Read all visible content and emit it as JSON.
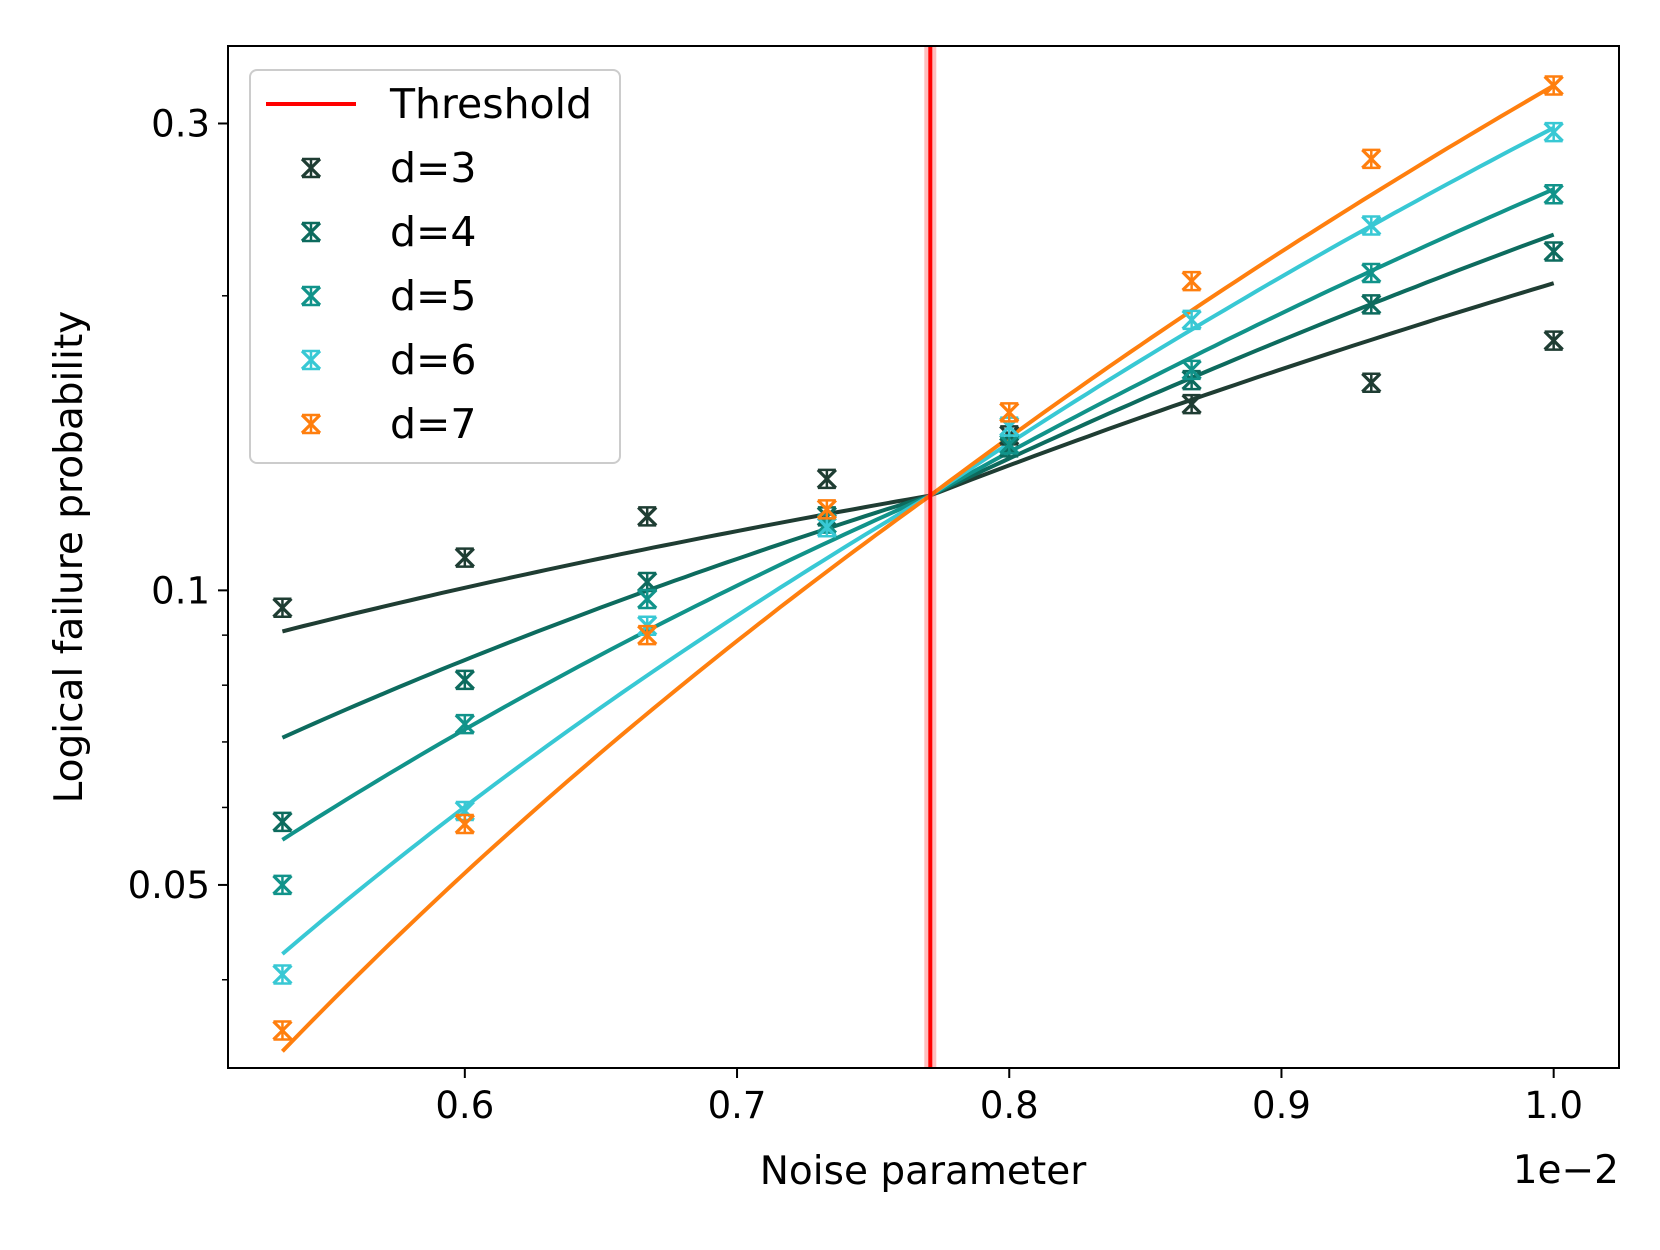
{
  "chart_data": {
    "type": "line",
    "title": "",
    "xlabel": "Noise parameter",
    "ylabel": "Logical failure probability",
    "x_offset_label": "1e−2",
    "xscale": "linear",
    "yscale": "log",
    "xlim": [
      0.513,
      1.024
    ],
    "ylim": [
      0.0325,
      0.36
    ],
    "xticks": [
      0.6,
      0.7,
      0.8,
      0.9,
      1.0
    ],
    "xtick_labels": [
      "0.6",
      "0.7",
      "0.8",
      "0.9",
      "1.0"
    ],
    "yticks": [
      0.05,
      0.1,
      0.3
    ],
    "ytick_labels": [
      "0.05",
      "0.1",
      "0.3"
    ],
    "minor_yticks": [
      0.04,
      0.06,
      0.07,
      0.08,
      0.09,
      0.2
    ],
    "grid": false,
    "legend_position": "top-left",
    "threshold": {
      "name": "Threshold",
      "x": 0.771,
      "color": "#ff0000"
    },
    "series": [
      {
        "name": "d=3",
        "color": "#1f3d33",
        "x": [
          0.533,
          0.6,
          0.667,
          0.733,
          0.8,
          0.867,
          0.933,
          1.0
        ],
        "y": [
          0.096,
          0.108,
          0.119,
          0.13,
          0.144,
          0.155,
          0.163,
          0.18
        ],
        "fit_y0": 0.0908,
        "fit_y1": 0.206
      },
      {
        "name": "d=4",
        "color": "#0d6b5e",
        "x": [
          0.533,
          0.6,
          0.667,
          0.733,
          0.8,
          0.867,
          0.933,
          1.0
        ],
        "y": [
          0.058,
          0.081,
          0.102,
          0.119,
          0.14,
          0.164,
          0.196,
          0.222
        ],
        "fit_y0": 0.0707,
        "fit_y1": 0.231
      },
      {
        "name": "d=5",
        "color": "#11938a",
        "x": [
          0.533,
          0.6,
          0.667,
          0.733,
          0.8,
          0.867,
          0.933,
          1.0
        ],
        "y": [
          0.05,
          0.073,
          0.098,
          0.117,
          0.141,
          0.168,
          0.211,
          0.254
        ],
        "fit_y0": 0.0556,
        "fit_y1": 0.257
      },
      {
        "name": "d=6",
        "color": "#38c8d4",
        "x": [
          0.533,
          0.6,
          0.667,
          0.733,
          0.8,
          0.867,
          0.933,
          1.0
        ],
        "y": [
          0.0405,
          0.0595,
          0.092,
          0.116,
          0.147,
          0.189,
          0.236,
          0.294
        ],
        "fit_y0": 0.0425,
        "fit_y1": 0.297
      },
      {
        "name": "d=7",
        "color": "#ff7f0e",
        "x": [
          0.533,
          0.6,
          0.667,
          0.733,
          0.8,
          0.867,
          0.933,
          1.0
        ],
        "y": [
          0.0355,
          0.0577,
          0.09,
          0.121,
          0.152,
          0.207,
          0.276,
          0.328
        ],
        "fit_y0": 0.0338,
        "fit_y1": 0.328
      }
    ]
  }
}
